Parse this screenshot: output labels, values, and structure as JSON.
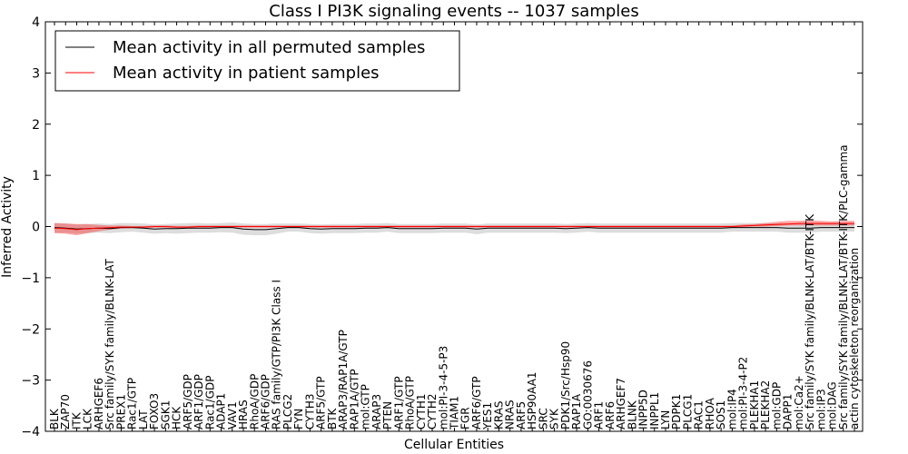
{
  "chart_data": {
    "type": "line",
    "title": "Class I PI3K signaling events -- 1037 samples",
    "xlabel": "Cellular Entities",
    "ylabel": "Inferred Activity",
    "ylim": [
      -4,
      4
    ],
    "yticks": [
      -4,
      -3,
      -2,
      -1,
      0,
      1,
      2,
      3,
      4
    ],
    "ytick_labels": [
      "−4",
      "−3",
      "−2",
      "−1",
      "0",
      "1",
      "2",
      "3",
      "4"
    ],
    "legend_position": "top-left",
    "categories": [
      "BLK",
      "ZAP70",
      "ITK",
      "LCK",
      "ARHGEF6",
      "Src family/SYK family/BLNK-LAT",
      "PREX1",
      "Rac1/GTP",
      "LAT",
      "FOXO3",
      "SGK1",
      "HCK",
      "ARF5/GDP",
      "ARF1/GDP",
      "Rac1/GDP",
      "ADAP1",
      "VAV1",
      "HRAS",
      "RhoA/GDP",
      "ARF6/GDP",
      "RAS family/GTP/PI3K Class I",
      "PLCG2",
      "FYN",
      "CYTH3",
      "ARF5/GTP",
      "BTK",
      "ARAP3/RAP1A/GTP",
      "RAP1A/GTP",
      "mol:GTP",
      "ARAP3",
      "PTEN",
      "ARF1/GTP",
      "RhoA/GTP",
      "CYTH1",
      "CYTH2",
      "mol:PI-3-4-5-P3",
      "TIAM1",
      "FGR",
      "ARF6/GTP",
      "YES1",
      "KRAS",
      "NRAS",
      "ARF5",
      "HSP90AA1",
      "SRC",
      "SYK",
      "PDK1/Src/Hsp90",
      "RAP1A",
      "GO:0030676",
      "ARF1",
      "ARF6",
      "ARHGEF7",
      "BLNK",
      "INPP5D",
      "INPPL1",
      "LYN",
      "PDPK1",
      "PLCG1",
      "RAC1",
      "RHOA",
      "SOS1",
      "mol:IP4",
      "mol:PI-3-4-P2",
      "PLEKHA1",
      "PLEKHA2",
      "mol:GDP",
      "DAPP1",
      "mol:Ca2+",
      "Src family/SYK family/BLNK-LAT/BTK-ITK",
      "mol:IP3",
      "mol:DAG",
      "Src family/SYK family/BLNK-LAT/BTK-ITK/PLC-gamma",
      "actin cytoskeleton reorganization"
    ],
    "series": [
      {
        "name": "Mean activity in all permuted samples",
        "color": "#000000",
        "values": [
          -0.02,
          -0.03,
          -0.05,
          -0.04,
          -0.03,
          -0.04,
          -0.02,
          -0.02,
          -0.03,
          -0.05,
          -0.04,
          -0.04,
          -0.03,
          -0.03,
          -0.03,
          -0.02,
          -0.02,
          -0.05,
          -0.06,
          -0.06,
          -0.04,
          -0.02,
          -0.02,
          -0.04,
          -0.05,
          -0.04,
          -0.04,
          -0.04,
          -0.03,
          -0.03,
          -0.02,
          -0.04,
          -0.04,
          -0.04,
          -0.04,
          -0.03,
          -0.03,
          -0.03,
          -0.05,
          -0.03,
          -0.03,
          -0.03,
          -0.03,
          -0.03,
          -0.03,
          -0.03,
          -0.04,
          -0.03,
          -0.02,
          -0.03,
          -0.03,
          -0.03,
          -0.03,
          -0.03,
          -0.03,
          -0.03,
          -0.03,
          -0.03,
          -0.03,
          -0.03,
          -0.03,
          -0.02,
          -0.02,
          -0.02,
          -0.02,
          -0.02,
          -0.03,
          -0.03,
          -0.03,
          -0.02,
          -0.02,
          -0.02,
          -0.02
        ],
        "band_lower": [
          -0.12,
          -0.12,
          -0.14,
          -0.13,
          -0.12,
          -0.13,
          -0.11,
          -0.1,
          -0.12,
          -0.14,
          -0.13,
          -0.14,
          -0.13,
          -0.12,
          -0.12,
          -0.11,
          -0.12,
          -0.16,
          -0.17,
          -0.17,
          -0.14,
          -0.1,
          -0.1,
          -0.13,
          -0.14,
          -0.13,
          -0.13,
          -0.13,
          -0.12,
          -0.12,
          -0.1,
          -0.13,
          -0.13,
          -0.13,
          -0.13,
          -0.12,
          -0.12,
          -0.12,
          -0.15,
          -0.12,
          -0.12,
          -0.12,
          -0.12,
          -0.12,
          -0.12,
          -0.12,
          -0.13,
          -0.12,
          -0.1,
          -0.12,
          -0.12,
          -0.12,
          -0.12,
          -0.12,
          -0.12,
          -0.12,
          -0.12,
          -0.12,
          -0.12,
          -0.12,
          -0.12,
          -0.1,
          -0.1,
          -0.1,
          -0.1,
          -0.1,
          -0.12,
          -0.12,
          -0.12,
          -0.1,
          -0.1,
          -0.1,
          -0.1
        ],
        "band_upper": [
          0.07,
          0.06,
          0.04,
          0.05,
          0.06,
          0.05,
          0.07,
          0.07,
          0.06,
          0.04,
          0.05,
          0.06,
          0.07,
          0.07,
          0.06,
          0.07,
          0.08,
          0.06,
          0.05,
          0.05,
          0.06,
          0.06,
          0.06,
          0.05,
          0.04,
          0.05,
          0.05,
          0.05,
          0.06,
          0.06,
          0.07,
          0.05,
          0.05,
          0.05,
          0.05,
          0.06,
          0.06,
          0.06,
          0.04,
          0.06,
          0.06,
          0.06,
          0.06,
          0.06,
          0.06,
          0.06,
          0.05,
          0.06,
          0.07,
          0.06,
          0.06,
          0.06,
          0.06,
          0.06,
          0.06,
          0.06,
          0.06,
          0.06,
          0.06,
          0.06,
          0.06,
          0.07,
          0.07,
          0.07,
          0.07,
          0.07,
          0.06,
          0.06,
          0.06,
          0.07,
          0.07,
          0.07,
          0.07
        ]
      },
      {
        "name": "Mean activity in patient samples",
        "color": "#ff0000",
        "values": [
          -0.03,
          -0.04,
          -0.06,
          -0.04,
          -0.03,
          -0.02,
          -0.01,
          -0.01,
          -0.01,
          0.0,
          0.0,
          -0.01,
          -0.01,
          0.0,
          0.0,
          0.0,
          0.0,
          0.0,
          0.0,
          0.0,
          0.0,
          0.0,
          0.0,
          0.0,
          0.0,
          0.0,
          0.0,
          0.0,
          0.0,
          0.0,
          0.0,
          0.0,
          0.0,
          0.0,
          0.0,
          0.0,
          0.0,
          0.0,
          0.0,
          0.0,
          0.0,
          0.0,
          0.0,
          0.0,
          0.0,
          0.0,
          0.0,
          0.0,
          0.0,
          0.0,
          0.0,
          0.0,
          0.0,
          0.0,
          0.0,
          0.0,
          0.0,
          0.0,
          0.0,
          0.0,
          0.0,
          0.0,
          0.01,
          0.02,
          0.03,
          0.04,
          0.05,
          0.06,
          0.06,
          0.06,
          0.06,
          0.06,
          0.06
        ],
        "band_lower": [
          -0.13,
          -0.14,
          -0.17,
          -0.13,
          -0.09,
          -0.06,
          -0.04,
          -0.03,
          -0.03,
          -0.02,
          -0.02,
          -0.03,
          -0.03,
          -0.02,
          -0.02,
          -0.02,
          -0.02,
          -0.02,
          -0.02,
          -0.02,
          -0.02,
          -0.02,
          -0.02,
          -0.02,
          -0.02,
          -0.02,
          -0.02,
          -0.02,
          -0.02,
          -0.02,
          -0.02,
          -0.02,
          -0.02,
          -0.02,
          -0.02,
          -0.02,
          -0.02,
          -0.02,
          -0.02,
          -0.02,
          -0.02,
          -0.02,
          -0.02,
          -0.02,
          -0.02,
          -0.02,
          -0.02,
          -0.02,
          -0.02,
          -0.02,
          -0.02,
          -0.02,
          -0.02,
          -0.02,
          -0.02,
          -0.02,
          -0.02,
          -0.02,
          -0.02,
          -0.02,
          -0.02,
          -0.02,
          -0.01,
          0.0,
          0.0,
          0.01,
          0.02,
          0.02,
          0.02,
          0.02,
          0.02,
          0.02,
          0.02
        ],
        "band_upper": [
          0.07,
          0.06,
          0.05,
          0.05,
          0.03,
          0.02,
          0.02,
          0.01,
          0.01,
          0.02,
          0.02,
          0.01,
          0.01,
          0.02,
          0.02,
          0.02,
          0.02,
          0.02,
          0.02,
          0.02,
          0.02,
          0.02,
          0.02,
          0.02,
          0.02,
          0.02,
          0.02,
          0.02,
          0.02,
          0.02,
          0.02,
          0.02,
          0.02,
          0.02,
          0.02,
          0.02,
          0.02,
          0.02,
          0.02,
          0.02,
          0.02,
          0.02,
          0.02,
          0.02,
          0.02,
          0.02,
          0.02,
          0.02,
          0.02,
          0.02,
          0.02,
          0.02,
          0.02,
          0.02,
          0.02,
          0.02,
          0.02,
          0.02,
          0.02,
          0.02,
          0.02,
          0.02,
          0.04,
          0.05,
          0.07,
          0.09,
          0.11,
          0.11,
          0.12,
          0.11,
          0.1,
          0.11,
          0.11
        ]
      }
    ]
  }
}
